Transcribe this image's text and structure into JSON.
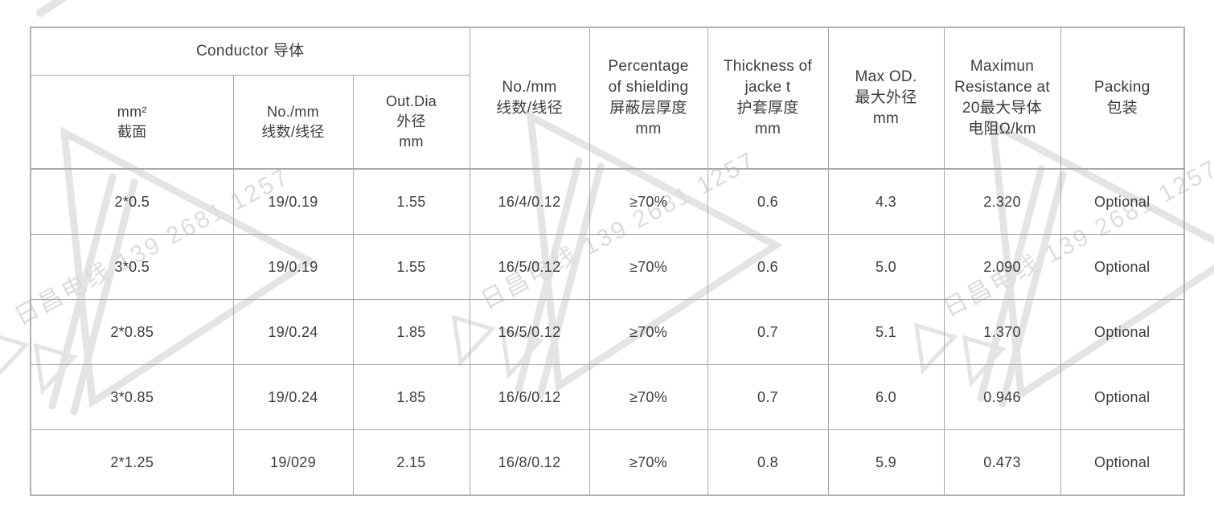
{
  "watermark": {
    "text": "日昌电线 139 2681 1257"
  },
  "colors": {
    "page-bg": "#ffffff",
    "grid": "#a8a8a8",
    "outer": "#b0b0b0",
    "text": "#3d3d3d",
    "wm-shape": "#e4e4e4",
    "wm-text": "#dcdcdc"
  },
  "table": {
    "conductor_group_label": "Conductor 导体",
    "headers": [
      {
        "id": "mm2",
        "text": "mm²\n截面"
      },
      {
        "id": "conductor_no_mm",
        "text": "No./mm\n线数/线径"
      },
      {
        "id": "out_dia",
        "text": "Out.Dia\n外径\nmm"
      },
      {
        "id": "shield_no_mm",
        "text": "No./mm\n线数/线径"
      },
      {
        "id": "shielding_pct",
        "text": "Percentage\nof shielding\n屏蔽层厚度\nmm"
      },
      {
        "id": "jacket_thickness",
        "text": "Thickness of\njacke t\n护套厚度\nmm"
      },
      {
        "id": "max_od",
        "text": "Max OD.\n最大外径\nmm"
      },
      {
        "id": "max_resistance",
        "text": "Maximun\nResistance at\n20最大导体\n电阻Ω/km"
      },
      {
        "id": "packing",
        "text": "Packing\n包装"
      }
    ],
    "rows": [
      [
        "2*0.5",
        "19/0.19",
        "1.55",
        "16/4/0.12",
        "≥70%",
        "0.6",
        "4.3",
        "2.320",
        "Optional"
      ],
      [
        "3*0.5",
        "19/0.19",
        "1.55",
        "16/5/0.12",
        "≥70%",
        "0.6",
        "5.0",
        "2.090",
        "Optional"
      ],
      [
        "2*0.85",
        "19/0.24",
        "1.85",
        "16/5/0.12",
        "≥70%",
        "0.7",
        "5.1",
        "1.370",
        "Optional"
      ],
      [
        "3*0.85",
        "19/0.24",
        "1.85",
        "16/6/0.12",
        "≥70%",
        "0.7",
        "6.0",
        "0.946",
        "Optional"
      ],
      [
        "2*1.25",
        "19/029",
        "2.15",
        "16/8/0.12",
        "≥70%",
        "0.8",
        "5.9",
        "0.473",
        "Optional"
      ]
    ]
  }
}
